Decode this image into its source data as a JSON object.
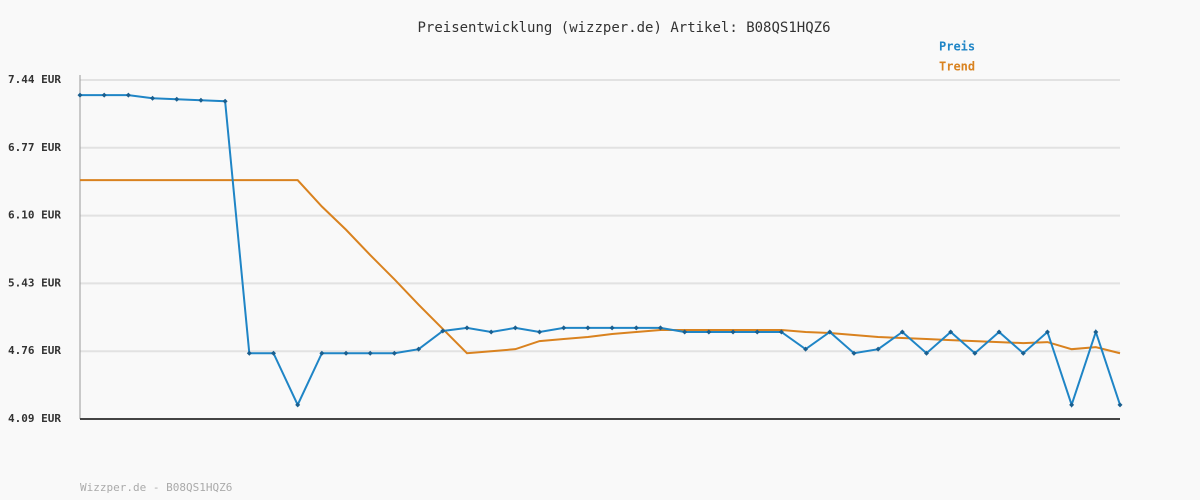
{
  "chart_data": {
    "type": "line",
    "title": "Preisentwicklung (wizzper.de) Artikel: B08QS1HQZ6",
    "footer": "Wizzper.de - B08QS1HQZ6",
    "categories": [
      null,
      null,
      null,
      null,
      null,
      null,
      null,
      null,
      null,
      null,
      null,
      null,
      null,
      null,
      null,
      null,
      null,
      null,
      null,
      null,
      null,
      null,
      null,
      null,
      null,
      null,
      null,
      null,
      null,
      null,
      null,
      null,
      null,
      null,
      null,
      null,
      null,
      null,
      null,
      null,
      null,
      null,
      null,
      null
    ],
    "series": [
      {
        "name": "Preis",
        "color": "#1f85c6",
        "markers": true,
        "values": [
          7.29,
          7.29,
          7.29,
          7.26,
          7.25,
          7.24,
          7.23,
          4.74,
          4.74,
          4.23,
          4.74,
          4.74,
          4.74,
          4.74,
          4.78,
          4.96,
          4.99,
          4.95,
          4.99,
          4.95,
          4.99,
          4.99,
          4.99,
          4.99,
          4.99,
          4.95,
          4.95,
          4.95,
          4.95,
          4.95,
          4.78,
          4.95,
          4.74,
          4.78,
          4.95,
          4.74,
          4.95,
          4.74,
          4.95,
          4.74,
          4.95,
          4.23,
          4.95,
          4.23
        ]
      },
      {
        "name": "Trend",
        "color": "#d9821f",
        "markers": false,
        "values": [
          6.45,
          6.45,
          6.45,
          6.45,
          6.45,
          6.45,
          6.45,
          6.45,
          6.45,
          6.45,
          6.19,
          5.96,
          5.71,
          5.47,
          5.22,
          4.98,
          4.74,
          4.76,
          4.78,
          4.86,
          4.88,
          4.9,
          4.93,
          4.95,
          4.97,
          4.97,
          4.97,
          4.97,
          4.97,
          4.97,
          4.95,
          4.94,
          4.92,
          4.9,
          4.89,
          4.88,
          4.87,
          4.86,
          4.85,
          4.84,
          4.85,
          4.78,
          4.8,
          4.74
        ]
      }
    ],
    "ylim": [
      4.09,
      7.44
    ],
    "yticks": [
      {
        "value": 4.09,
        "label": "4.09 EUR"
      },
      {
        "value": 4.76,
        "label": "4.76 EUR"
      },
      {
        "value": 5.43,
        "label": "5.43 EUR"
      },
      {
        "value": 6.1,
        "label": "6.10 EUR"
      },
      {
        "value": 6.77,
        "label": "6.77 EUR"
      },
      {
        "value": 7.44,
        "label": "7.44 EUR"
      }
    ],
    "grid": true
  }
}
